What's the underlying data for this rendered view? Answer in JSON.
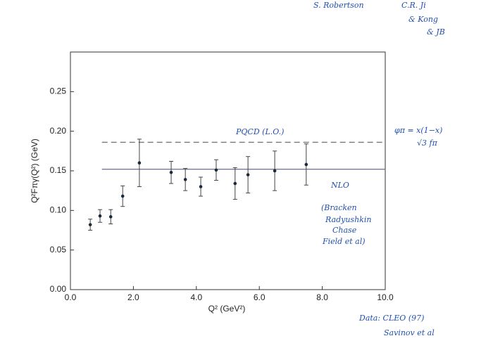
{
  "chart_data": {
    "type": "scatter",
    "x_label": "Q² (GeV²)",
    "y_label": "Q²Fπγ(Q²) (GeV)",
    "xlim": [
      0,
      10
    ],
    "ylim": [
      0,
      0.3
    ],
    "xticks": [
      {
        "value": 0,
        "label": "0.0"
      },
      {
        "value": 2,
        "label": "2.0"
      },
      {
        "value": 4,
        "label": "4.0"
      },
      {
        "value": 6,
        "label": "6.0"
      },
      {
        "value": 8,
        "label": "8.0"
      },
      {
        "value": 10,
        "label": "10.0"
      }
    ],
    "yticks": [
      {
        "value": 0,
        "label": "0.00"
      },
      {
        "value": 0.05,
        "label": "0.05"
      },
      {
        "value": 0.1,
        "label": "0.10"
      },
      {
        "value": 0.15,
        "label": "0.15"
      },
      {
        "value": 0.2,
        "label": "0.20"
      },
      {
        "value": 0.25,
        "label": "0.25"
      }
    ],
    "series": [
      {
        "color": "#1a2a3a",
        "x": [
          0.63,
          0.94,
          1.28,
          1.66,
          2.19,
          3.2,
          3.65,
          4.14,
          4.63,
          5.23,
          5.64,
          6.49,
          7.49
        ],
        "values": [
          0.082,
          0.093,
          0.092,
          0.118,
          0.16,
          0.148,
          0.139,
          0.13,
          0.151,
          0.134,
          0.145,
          0.15,
          0.158
        ],
        "errors": [
          0.007,
          0.008,
          0.009,
          0.013,
          0.03,
          0.014,
          0.014,
          0.012,
          0.013,
          0.02,
          0.023,
          0.025,
          0.026
        ]
      }
    ],
    "reference_lines": [
      {
        "label": "PQCD (L.O.)",
        "x": [
          1.0,
          10.0
        ],
        "values": [
          0.186,
          0.186
        ],
        "dashed": true,
        "color": "#777"
      },
      {
        "label": "NLO",
        "x": [
          1.0,
          10.0
        ],
        "values": [
          0.152,
          0.152
        ],
        "dashed": false,
        "color": "#6a6a8a"
      }
    ],
    "annotations": [
      "S. Robertson",
      "C.R. Ji",
      "& Kong",
      "& JB",
      "φπ = x(1−x)",
      "√3 fπ",
      "(Bracken",
      "Radyushkin",
      "Chase",
      "Field et al)",
      "Data: CLEO (97)",
      "Savinov et al"
    ]
  }
}
